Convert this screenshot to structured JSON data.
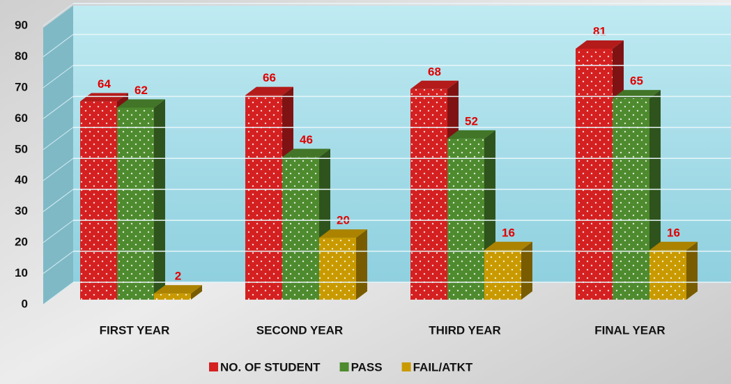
{
  "chart_data": {
    "type": "bar3d",
    "categories": [
      "FIRST YEAR",
      "SECOND YEAR",
      "THIRD YEAR",
      "FINAL YEAR"
    ],
    "series": [
      {
        "name": "NO. OF STUDENT",
        "color": "#d42020",
        "values": [
          64,
          66,
          68,
          81
        ]
      },
      {
        "name": "PASS",
        "color": "#4e8a2e",
        "values": [
          62,
          46,
          52,
          65
        ]
      },
      {
        "name": "FAIL/ATKT",
        "color": "#c99a00",
        "values": [
          2,
          20,
          16,
          16
        ]
      }
    ],
    "ylim": [
      0,
      90
    ],
    "yticks": [
      0,
      10,
      20,
      30,
      40,
      50,
      60,
      70,
      80,
      90
    ],
    "grid": true
  }
}
